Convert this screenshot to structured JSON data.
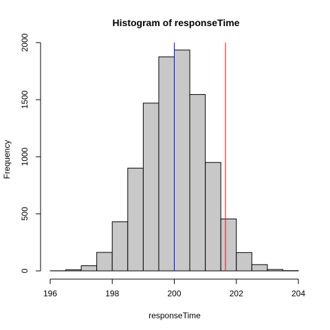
{
  "chart_data": {
    "type": "histogram",
    "title": "Histogram of responseTime",
    "xlabel": "responseTime",
    "ylabel": "Frequency",
    "xlim": [
      196,
      204
    ],
    "ylim": [
      0,
      2000
    ],
    "xticks": [
      "196",
      "198",
      "200",
      "202",
      "204"
    ],
    "yticks": [
      "0",
      "500",
      "1000",
      "1500",
      "2000"
    ],
    "bin_width": 0.5,
    "bins": [
      {
        "start": 196.0,
        "end": 196.5,
        "count": 1
      },
      {
        "start": 196.5,
        "end": 197.0,
        "count": 10
      },
      {
        "start": 197.0,
        "end": 197.5,
        "count": 45
      },
      {
        "start": 197.5,
        "end": 198.0,
        "count": 162
      },
      {
        "start": 198.0,
        "end": 198.5,
        "count": 430
      },
      {
        "start": 198.5,
        "end": 199.0,
        "count": 900
      },
      {
        "start": 199.0,
        "end": 199.5,
        "count": 1470
      },
      {
        "start": 199.5,
        "end": 200.0,
        "count": 1875
      },
      {
        "start": 200.0,
        "end": 200.5,
        "count": 1935
      },
      {
        "start": 200.5,
        "end": 201.0,
        "count": 1545
      },
      {
        "start": 201.0,
        "end": 201.5,
        "count": 950
      },
      {
        "start": 201.5,
        "end": 202.0,
        "count": 455
      },
      {
        "start": 202.0,
        "end": 202.5,
        "count": 160
      },
      {
        "start": 202.5,
        "end": 203.0,
        "count": 55
      },
      {
        "start": 203.0,
        "end": 203.5,
        "count": 12
      },
      {
        "start": 203.5,
        "end": 204.0,
        "count": 2
      }
    ],
    "vlines": [
      {
        "x": 200.0,
        "color": "#0000ff"
      },
      {
        "x": 201.65,
        "color": "#ff0000"
      }
    ],
    "bar_color": "#c8c8c8",
    "grid": false
  }
}
